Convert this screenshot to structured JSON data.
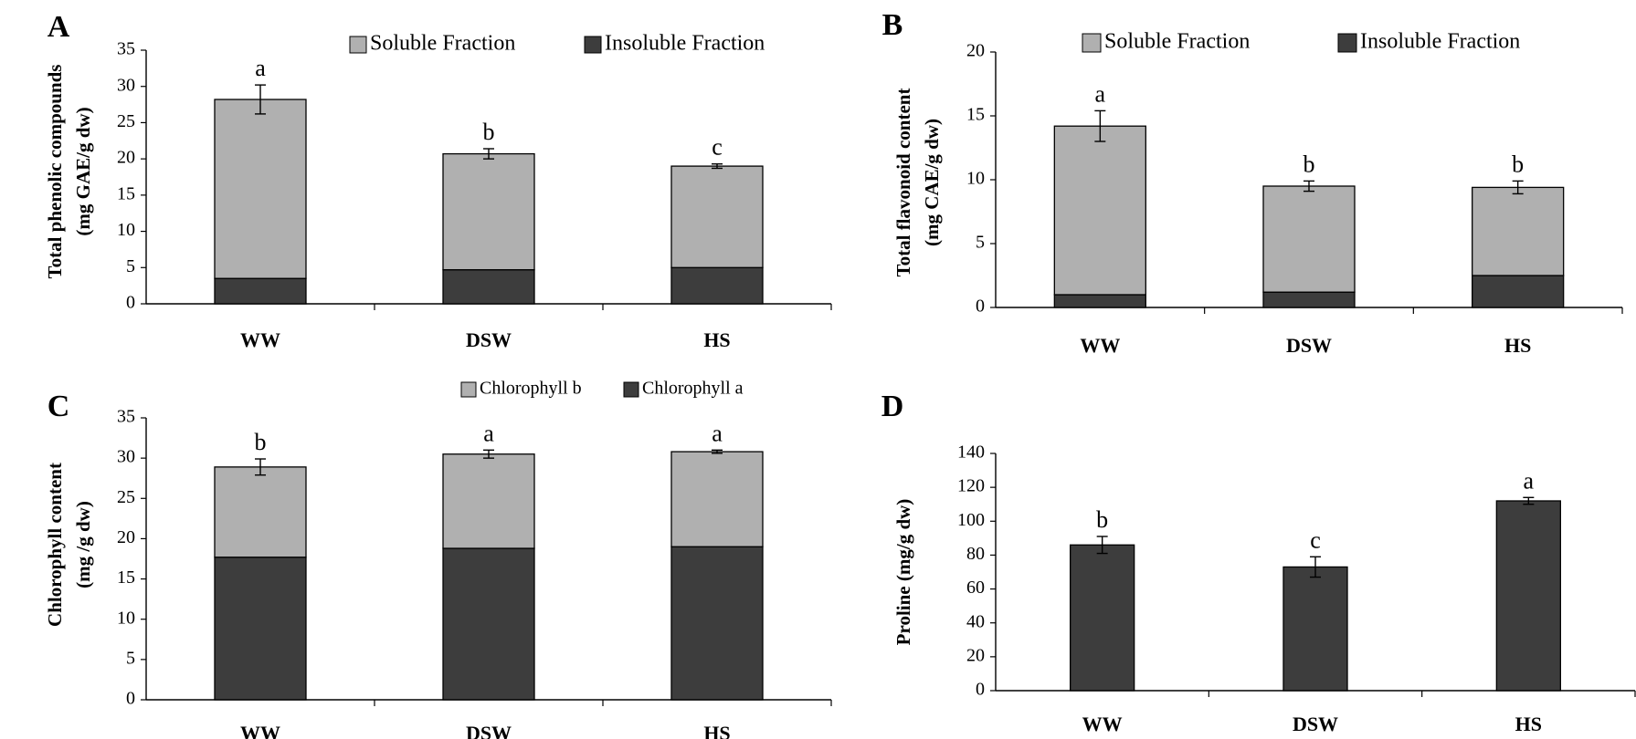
{
  "colors": {
    "soluble": "#b0b0b0",
    "insoluble": "#3d3d3d",
    "axis": "#000000"
  },
  "chart_data": [
    {
      "panel": "A",
      "type": "bar",
      "stacked": true,
      "ylabel_lines": [
        "Total phenolic compounds",
        "(mg GAE/g dw)"
      ],
      "categories": [
        "WW",
        "DSW",
        "HS"
      ],
      "ylim": [
        0,
        35
      ],
      "yticks": [
        0,
        5,
        10,
        15,
        20,
        25,
        30,
        35
      ],
      "series": [
        {
          "name": "Soluble Fraction",
          "color": "#b0b0b0",
          "values": [
            24.7,
            16.0,
            14.0
          ]
        },
        {
          "name": "Insoluble Fraction",
          "color": "#3d3d3d",
          "values": [
            3.5,
            4.7,
            5.0
          ]
        }
      ],
      "stack_order": [
        1,
        0
      ],
      "legend_order": [
        0,
        1
      ],
      "totals": [
        28.2,
        20.7,
        19.0
      ],
      "errors": [
        2.0,
        0.7,
        0.3
      ],
      "letters": [
        "a",
        "b",
        "c"
      ],
      "legend_position": "top-right"
    },
    {
      "panel": "B",
      "type": "bar",
      "stacked": true,
      "ylabel_lines": [
        "Total flavonoid content",
        "(mg CAE/g dw)"
      ],
      "categories": [
        "WW",
        "DSW",
        "HS"
      ],
      "ylim": [
        0,
        20
      ],
      "yticks": [
        0,
        5,
        10,
        15,
        20
      ],
      "series": [
        {
          "name": "Soluble Fraction",
          "color": "#b0b0b0",
          "values": [
            13.2,
            8.3,
            6.9
          ]
        },
        {
          "name": "Insoluble Fraction",
          "color": "#3d3d3d",
          "values": [
            1.0,
            1.2,
            2.5
          ]
        }
      ],
      "stack_order": [
        1,
        0
      ],
      "legend_order": [
        0,
        1
      ],
      "totals": [
        14.2,
        9.5,
        9.4
      ],
      "errors": [
        1.2,
        0.4,
        0.5
      ],
      "letters": [
        "a",
        "b",
        "b"
      ],
      "legend_position": "top-right"
    },
    {
      "panel": "C",
      "type": "bar",
      "stacked": true,
      "ylabel_lines": [
        "Chlorophyll content",
        "(mg /g dw)"
      ],
      "categories": [
        "WW",
        "DSW",
        "HS"
      ],
      "ylim": [
        0,
        35
      ],
      "yticks": [
        0,
        5,
        10,
        15,
        20,
        25,
        30,
        35
      ],
      "series": [
        {
          "name": "Chlorophyll a",
          "color": "#3d3d3d",
          "values": [
            17.7,
            18.8,
            19.0
          ]
        },
        {
          "name": "Chlorophyll b",
          "color": "#b0b0b0",
          "values": [
            11.2,
            11.7,
            11.8
          ]
        }
      ],
      "stack_order": [
        0,
        1
      ],
      "legend_order": [
        1,
        0
      ],
      "totals": [
        28.9,
        30.5,
        30.8
      ],
      "errors": [
        1.0,
        0.5,
        0.2
      ],
      "letters": [
        "b",
        "a",
        "a"
      ],
      "legend_position": "top-right"
    },
    {
      "panel": "D",
      "type": "bar",
      "stacked": false,
      "ylabel_lines": [
        "Proline (mg/g dw)"
      ],
      "categories": [
        "WW",
        "DSW",
        "HS"
      ],
      "ylim": [
        0,
        140
      ],
      "yticks": [
        0,
        20,
        40,
        60,
        80,
        100,
        120,
        140
      ],
      "series": [
        {
          "name": "Proline",
          "color": "#3d3d3d",
          "values": [
            86,
            73,
            112
          ]
        }
      ],
      "stack_order": [
        0
      ],
      "legend_order": [],
      "totals": [
        86,
        73,
        112
      ],
      "errors": [
        5,
        6,
        2
      ],
      "letters": [
        "b",
        "c",
        "a"
      ],
      "legend_position": "none"
    }
  ]
}
